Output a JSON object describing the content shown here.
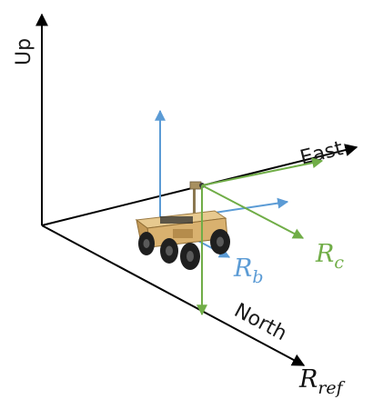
{
  "axes": {
    "up_label": "Up",
    "east_label": "East",
    "north_label": "North"
  },
  "frames": {
    "ref": {
      "main": "R",
      "sub": "ref",
      "color": "#111111"
    },
    "b": {
      "main": "R",
      "sub": "b",
      "color": "#5b9bd5"
    },
    "c": {
      "main": "R",
      "sub": "c",
      "color": "#70ad47"
    }
  },
  "colors": {
    "reference_axes": "#000000",
    "body_frame": "#5b9bd5",
    "camera_frame": "#70ad47"
  },
  "icons": {
    "vehicle": "wheeled-rover-icon"
  }
}
